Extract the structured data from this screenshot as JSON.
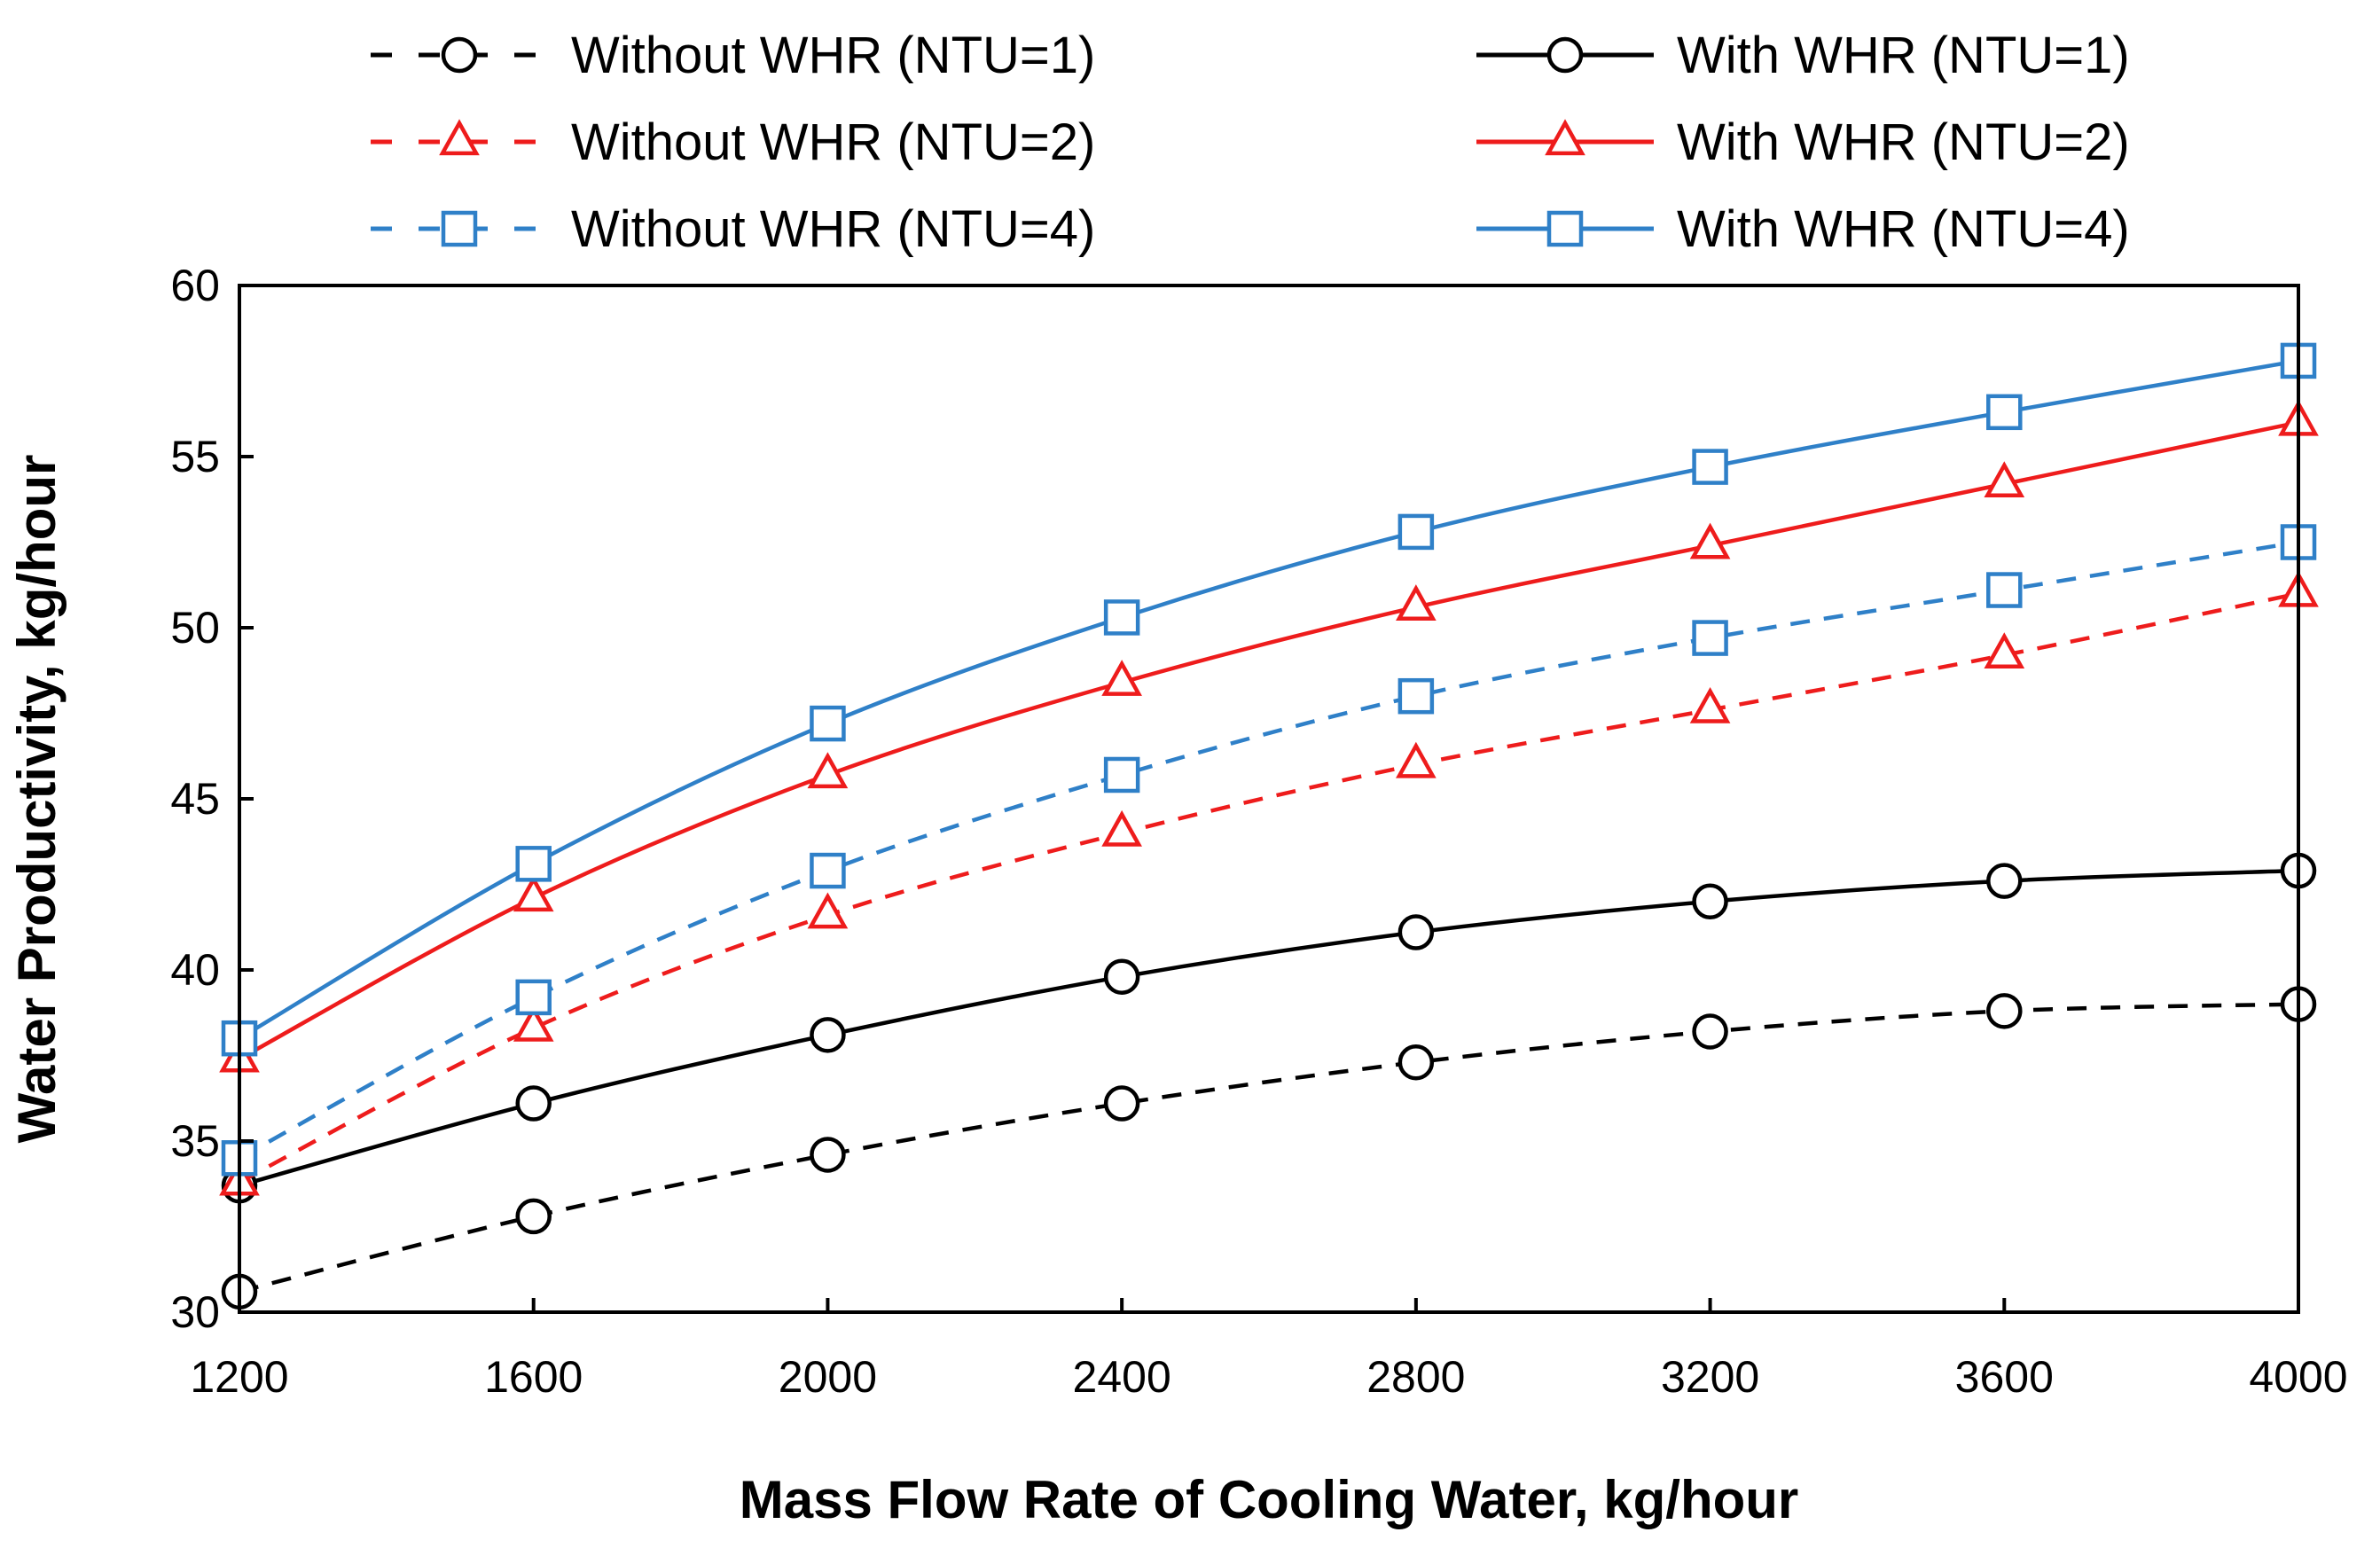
{
  "chart_data": {
    "type": "line",
    "title": "",
    "xlabel": "Mass Flow Rate of Cooling Water, kg/hour",
    "ylabel": "Water Productivity, kg/hour",
    "xlim": [
      1200,
      4000
    ],
    "ylim": [
      30,
      60
    ],
    "x_ticks": [
      "1200",
      "1600",
      "2000",
      "2400",
      "2800",
      "3200",
      "3600",
      "4000"
    ],
    "y_ticks": [
      "30",
      "35",
      "40",
      "45",
      "50",
      "55",
      "60"
    ],
    "grid": false,
    "legend_position": "top",
    "x": [
      1200,
      1600,
      2000,
      2400,
      2800,
      3200,
      3600,
      4000
    ],
    "series": [
      {
        "name": "Without WHR (NTU=1)",
        "color": "#000000",
        "dashed": true,
        "marker": "circle",
        "values": [
          30.6,
          32.8,
          34.6,
          36.1,
          37.3,
          38.2,
          38.8,
          39.0
        ]
      },
      {
        "name": "With WHR (NTU=1)",
        "color": "#000000",
        "dashed": false,
        "marker": "circle",
        "values": [
          33.7,
          36.1,
          38.1,
          39.8,
          41.1,
          42.0,
          42.6,
          42.9
        ]
      },
      {
        "name": "Without WHR (NTU=2)",
        "color": "#ee1c1c",
        "dashed": true,
        "marker": "triangle",
        "values": [
          33.8,
          38.3,
          41.6,
          44.0,
          46.0,
          47.6,
          49.2,
          51.0
        ]
      },
      {
        "name": "With WHR (NTU=2)",
        "color": "#ee1c1c",
        "dashed": false,
        "marker": "triangle",
        "values": [
          37.4,
          42.1,
          45.7,
          48.4,
          50.6,
          52.4,
          54.2,
          56.0
        ]
      },
      {
        "name": "Without WHR (NTU=4)",
        "color": "#2f80c8",
        "dashed": true,
        "marker": "square",
        "values": [
          34.5,
          39.2,
          42.9,
          45.7,
          48.0,
          49.7,
          51.1,
          52.5
        ]
      },
      {
        "name": "With WHR (NTU=4)",
        "color": "#2f80c8",
        "dashed": false,
        "marker": "square",
        "values": [
          38.0,
          43.1,
          47.2,
          50.3,
          52.8,
          54.7,
          56.3,
          57.8
        ]
      }
    ]
  }
}
